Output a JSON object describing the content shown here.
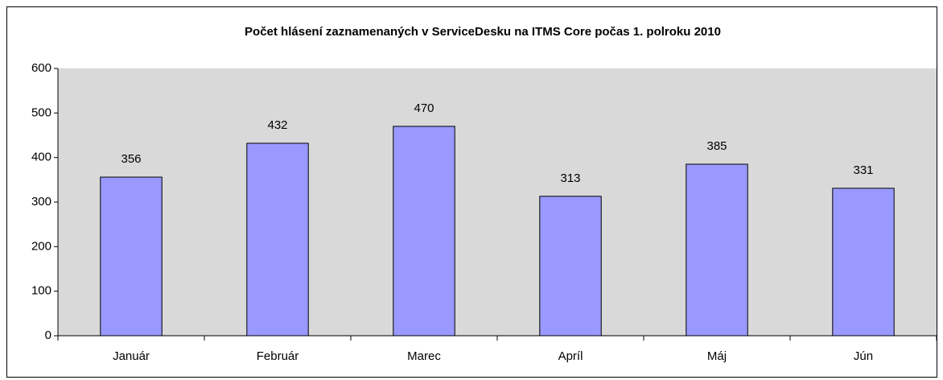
{
  "chart_data": {
    "type": "bar",
    "title": "Počet hlásení zaznamenaných v ServiceDesku na ITMS Core počas 1. polroku 2010",
    "categories": [
      "Január",
      "Február",
      "Marec",
      "Apríl",
      "Máj",
      "Jún"
    ],
    "values": [
      356,
      432,
      470,
      313,
      385,
      331
    ],
    "color": "#9999ff",
    "ylim": [
      0,
      600
    ],
    "yticks": [
      0,
      100,
      200,
      300,
      400,
      500,
      600
    ],
    "grid": false
  }
}
